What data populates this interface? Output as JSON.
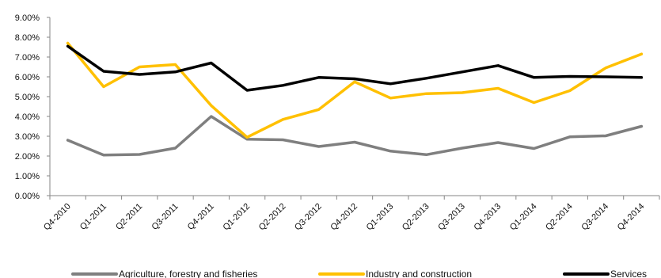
{
  "chart_data": {
    "type": "line",
    "categories": [
      "Q4-2010",
      "Q1-2011",
      "Q2-2011",
      "Q3-2011",
      "Q4-2011",
      "Q1-2012",
      "Q2-2012",
      "Q3-2012",
      "Q4-2012",
      "Q1-2013",
      "Q2-2013",
      "Q3-2013",
      "Q4-2013",
      "Q1-2014",
      "Q2-2014",
      "Q3-2014",
      "Q4-2014"
    ],
    "ylim": [
      0,
      9
    ],
    "yticks": [
      "0.00%",
      "1.00%",
      "2.00%",
      "3.00%",
      "4.00%",
      "5.00%",
      "6.00%",
      "7.00%",
      "8.00%",
      "9.00%"
    ],
    "grid": false,
    "legend_position": "bottom",
    "series": [
      {
        "name": "Agriculture, forestry and fisheries",
        "color": "#7f7f7f",
        "values": [
          2.8,
          2.05,
          2.08,
          2.4,
          4.0,
          2.85,
          2.82,
          2.48,
          2.7,
          2.25,
          2.07,
          2.4,
          2.68,
          2.38,
          2.97,
          3.02,
          3.5
        ]
      },
      {
        "name": "Industry and construction",
        "color": "#ffc000",
        "values": [
          7.7,
          5.5,
          6.5,
          6.62,
          4.55,
          2.95,
          3.85,
          4.35,
          5.75,
          4.93,
          5.15,
          5.2,
          5.42,
          4.7,
          5.3,
          6.45,
          7.15
        ]
      },
      {
        "name": "Services",
        "color": "#000000",
        "values": [
          7.55,
          6.28,
          6.12,
          6.25,
          6.7,
          5.32,
          5.57,
          5.97,
          5.9,
          5.65,
          5.93,
          6.25,
          6.57,
          5.97,
          6.02,
          6.0,
          5.97
        ]
      }
    ]
  }
}
